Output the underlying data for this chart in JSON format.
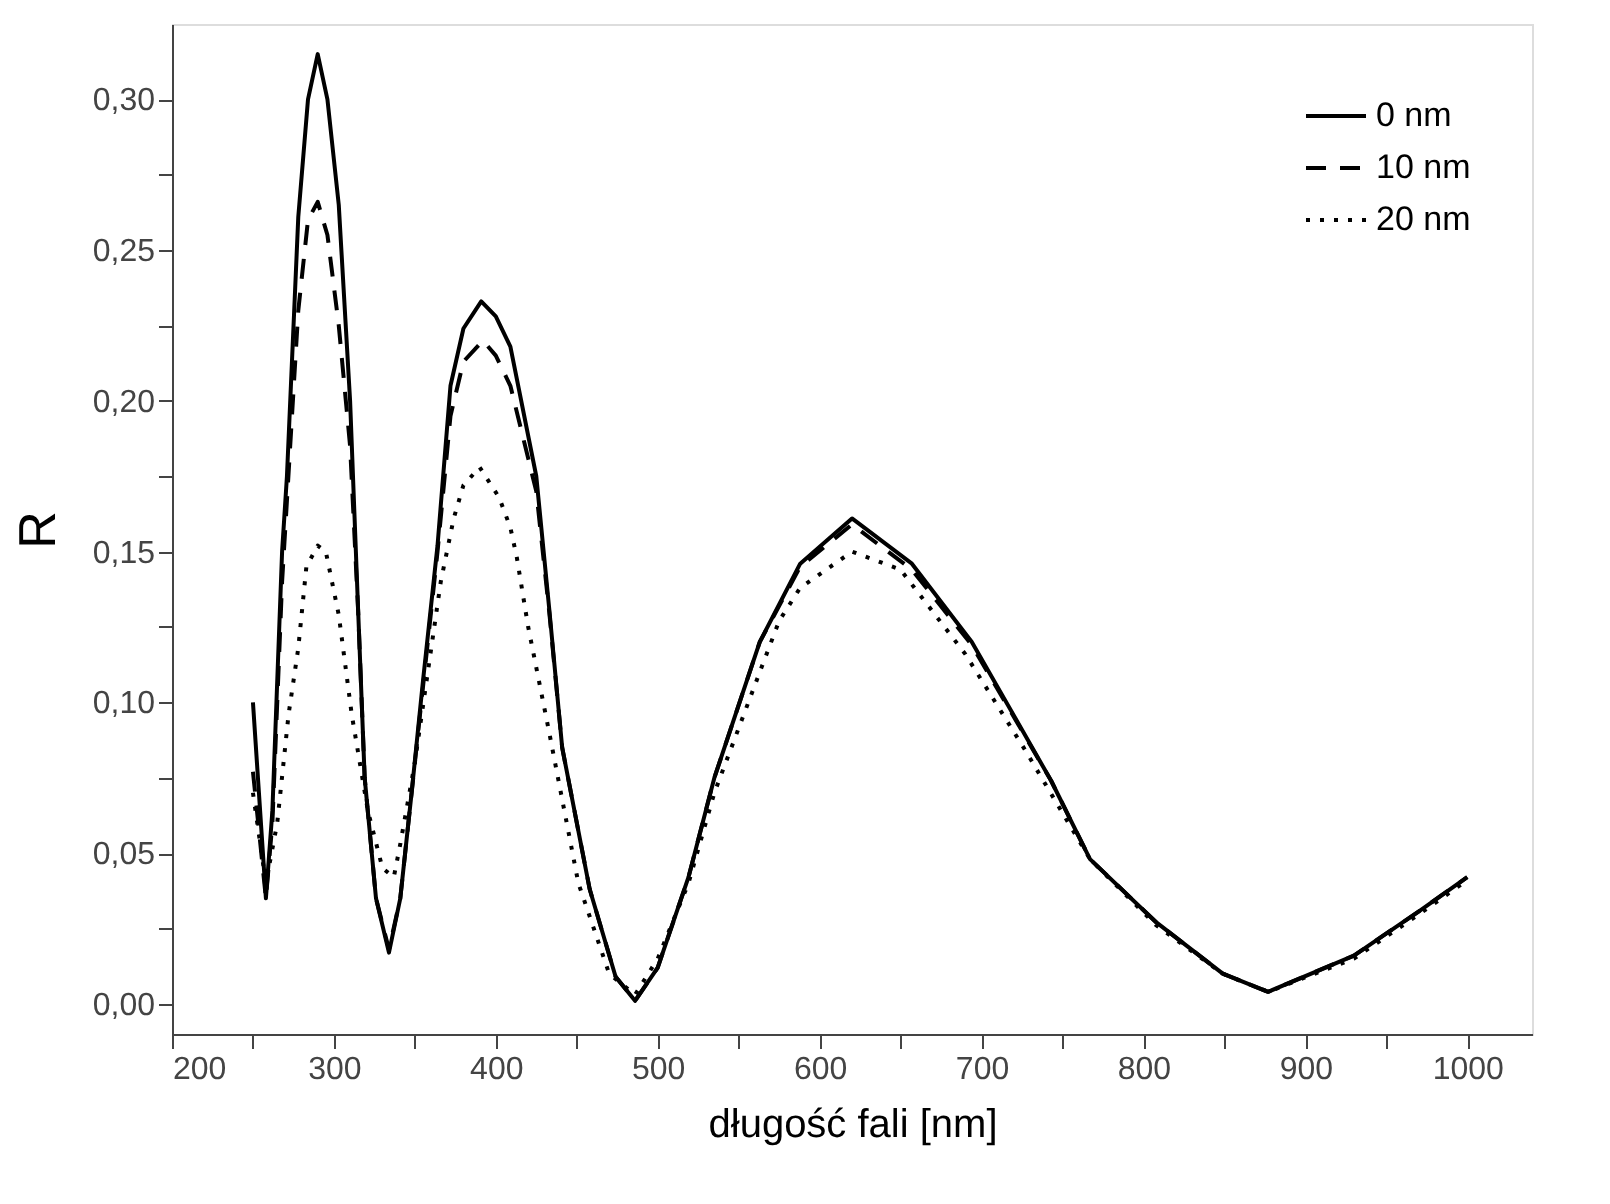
{
  "chart_data": {
    "type": "line",
    "xlabel": "długość fali [nm]",
    "ylabel": "R",
    "xlim": [
      200,
      1040
    ],
    "ylim": [
      -0.01,
      0.325
    ],
    "xticks": [
      200,
      {
        "value": 250,
        "label": null
      },
      300,
      {
        "value": 350,
        "label": null
      },
      400,
      {
        "value": 450,
        "label": null
      },
      500,
      {
        "value": 550,
        "label": null
      },
      600,
      {
        "value": 650,
        "label": null
      },
      700,
      {
        "value": 750,
        "label": null
      },
      800,
      {
        "value": 850,
        "label": null
      },
      900,
      {
        "value": 950,
        "label": null
      },
      1000
    ],
    "yticks": [
      {
        "value": 0,
        "label": "0,00"
      },
      {
        "value": 0.025,
        "label": null
      },
      {
        "value": 0.05,
        "label": "0,05"
      },
      {
        "value": 0.075,
        "label": null
      },
      {
        "value": 0.1,
        "label": "0,10"
      },
      {
        "value": 0.125,
        "label": null
      },
      {
        "value": 0.15,
        "label": "0,15"
      },
      {
        "value": 0.175,
        "label": null
      },
      {
        "value": 0.2,
        "label": "0,20"
      },
      {
        "value": 0.225,
        "label": null
      },
      {
        "value": 0.25,
        "label": "0,25"
      },
      {
        "value": 0.275,
        "label": null
      },
      {
        "value": 0.3,
        "label": "0,30"
      }
    ],
    "grid": false,
    "legend": "top right",
    "marker": "none",
    "series": [
      {
        "name": "0 nm",
        "color": "#000000",
        "line_style": "solid",
        "x": [
          250,
          258,
          262,
          268,
          271,
          278,
          284,
          290,
          296,
          303,
          310,
          315,
          319,
          326,
          334,
          341,
          348,
          355,
          364,
          372,
          380,
          391,
          400,
          409,
          425,
          433,
          441,
          458,
          474,
          486,
          500,
          519,
          535,
          563,
          588,
          620,
          657,
          694,
          743,
          767,
          808,
          849,
          877,
          930,
          971,
          1000
        ],
        "values": [
          0.1,
          0.035,
          0.064,
          0.15,
          0.175,
          0.261,
          0.3,
          0.315,
          0.3,
          0.265,
          0.2,
          0.13,
          0.075,
          0.035,
          0.017,
          0.035,
          0.07,
          0.107,
          0.152,
          0.205,
          0.224,
          0.233,
          0.228,
          0.218,
          0.175,
          0.131,
          0.085,
          0.038,
          0.009,
          0.001,
          0.012,
          0.042,
          0.075,
          0.12,
          0.146,
          0.161,
          0.146,
          0.12,
          0.074,
          0.048,
          0.027,
          0.01,
          0.004,
          0.016,
          0.031,
          0.042
        ]
      },
      {
        "name": "10 nm",
        "color": "#000000",
        "line_style": "dashed",
        "x": [
          250,
          258,
          262,
          268,
          278,
          284,
          290,
          296,
          303,
          310,
          315,
          319,
          326,
          334,
          341,
          348,
          355,
          364,
          372,
          380,
          392,
          400,
          409,
          425,
          433,
          441,
          458,
          474,
          486,
          500,
          519,
          535,
          563,
          588,
          620,
          657,
          694,
          743,
          767,
          808,
          849,
          877,
          930,
          971,
          1000
        ],
        "values": [
          0.077,
          0.035,
          0.06,
          0.14,
          0.23,
          0.26,
          0.266,
          0.255,
          0.225,
          0.185,
          0.13,
          0.075,
          0.035,
          0.018,
          0.035,
          0.07,
          0.105,
          0.15,
          0.195,
          0.213,
          0.22,
          0.215,
          0.205,
          0.17,
          0.13,
          0.085,
          0.038,
          0.009,
          0.001,
          0.012,
          0.042,
          0.075,
          0.12,
          0.145,
          0.159,
          0.144,
          0.119,
          0.074,
          0.048,
          0.027,
          0.01,
          0.004,
          0.016,
          0.031,
          0.042
        ]
      },
      {
        "name": "20 nm",
        "color": "#000000",
        "line_style": "dotted",
        "x": [
          250,
          258,
          265,
          272,
          278,
          283,
          290,
          295,
          303,
          311,
          321,
          330,
          337,
          341,
          350,
          358,
          366,
          374,
          380,
          390,
          402,
          409,
          413,
          420,
          433,
          451,
          470,
          486,
          500,
          519,
          535,
          563,
          575,
          588,
          620,
          650,
          690,
          726,
          767,
          808,
          849,
          877,
          930,
          971,
          1000
        ],
        "values": [
          0.07,
          0.04,
          0.06,
          0.096,
          0.118,
          0.145,
          0.152,
          0.15,
          0.129,
          0.096,
          0.064,
          0.045,
          0.042,
          0.053,
          0.08,
          0.11,
          0.14,
          0.161,
          0.172,
          0.178,
          0.168,
          0.158,
          0.148,
          0.125,
          0.09,
          0.04,
          0.01,
          0.003,
          0.015,
          0.04,
          0.07,
          0.11,
          0.127,
          0.138,
          0.15,
          0.144,
          0.116,
          0.085,
          0.048,
          0.026,
          0.01,
          0.004,
          0.015,
          0.03,
          0.041
        ]
      }
    ]
  }
}
